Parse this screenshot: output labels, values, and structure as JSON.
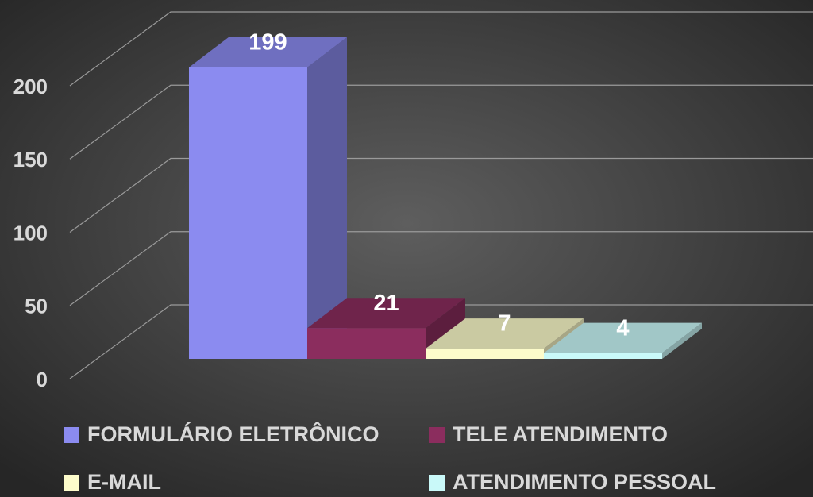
{
  "chart_data": {
    "type": "bar3d",
    "series": [
      {
        "name": "FORMULÁRIO ELETRÔNICO",
        "color": "#8b8bf0",
        "values": [
          199
        ]
      },
      {
        "name": "TELE ATENDIMENTO",
        "color": "#8b2d5e",
        "values": [
          21
        ]
      },
      {
        "name": "E-MAIL",
        "color": "#fdfccb",
        "values": [
          7
        ]
      },
      {
        "name": "ATENDIMENTO PESSOAL",
        "color": "#c9f9f9",
        "values": [
          4
        ]
      }
    ],
    "ylim": [
      0,
      200
    ],
    "yticks": [
      0,
      50,
      100,
      150,
      200
    ],
    "grid": true,
    "data_labels": true
  }
}
